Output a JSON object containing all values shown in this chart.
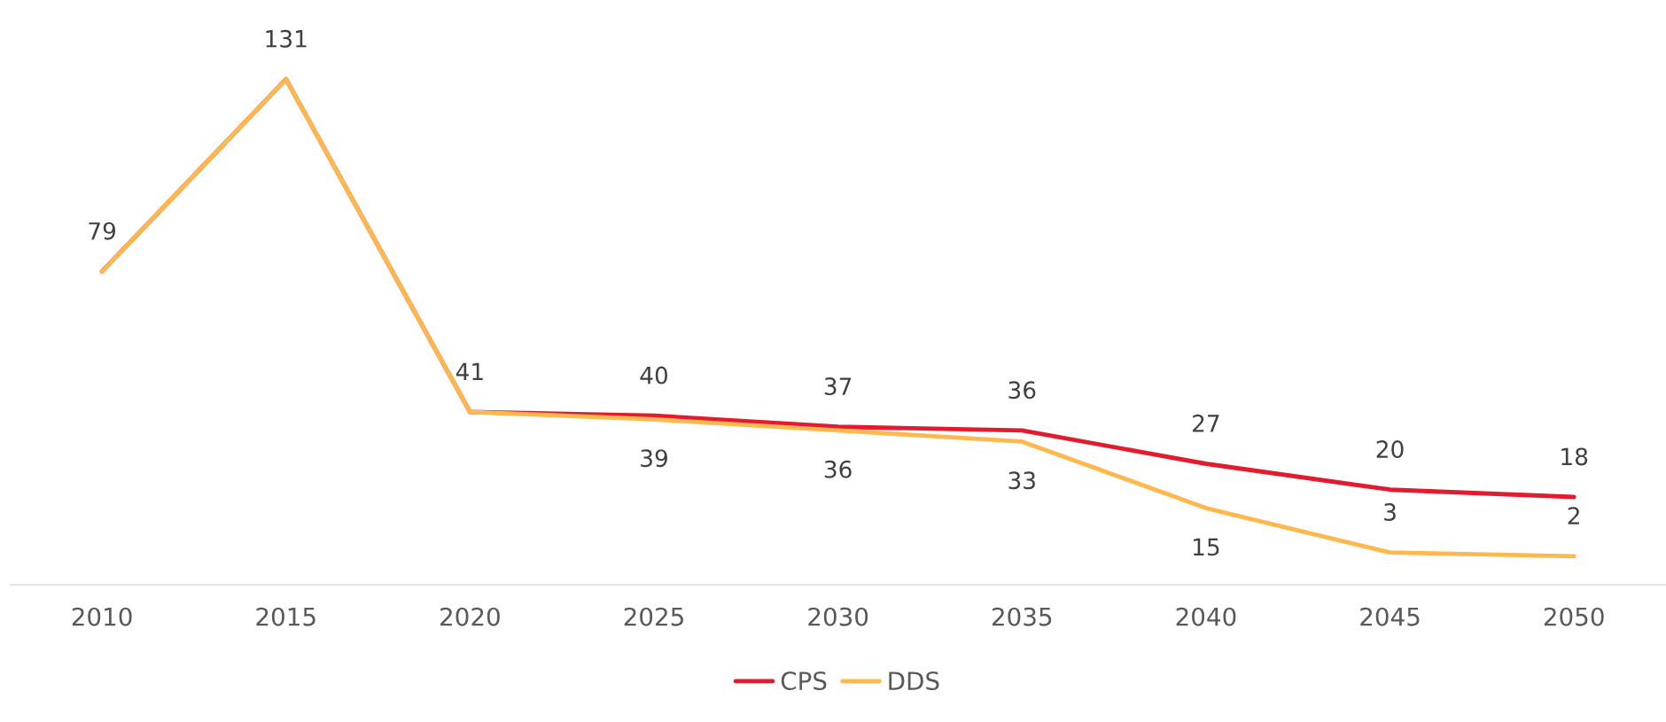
{
  "chart_data": {
    "type": "line",
    "categories": [
      "2010",
      "2015",
      "2020",
      "2025",
      "2030",
      "2035",
      "2040",
      "2045",
      "2050"
    ],
    "series": [
      {
        "name": "CPS",
        "color": "#e31b2f",
        "values": [
          79,
          131,
          41,
          40,
          37,
          36,
          27,
          20,
          18
        ],
        "value_labels": [
          "79",
          "131",
          "41",
          "40",
          "37",
          "36",
          "27",
          "20",
          "18"
        ]
      },
      {
        "name": "DDS",
        "color": "#ffb84d",
        "values": [
          79,
          131,
          41,
          39,
          36,
          33,
          15,
          3,
          2
        ],
        "value_labels": [
          null,
          null,
          null,
          "39",
          "36",
          "33",
          "15",
          "3",
          "2"
        ]
      }
    ],
    "grid": false,
    "legend": "bottom",
    "marker": "none",
    "line_style": "solid"
  }
}
